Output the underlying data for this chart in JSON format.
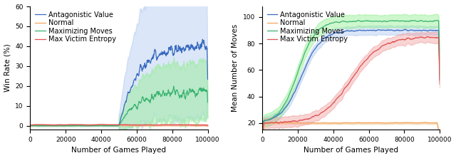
{
  "left": {
    "xlabel": "Number of Games Played",
    "ylabel": "Win Rate (%)",
    "xlim": [
      0,
      100000
    ],
    "ylim": [
      -2,
      60
    ],
    "yticks": [
      0,
      10,
      20,
      30,
      40,
      50,
      60
    ],
    "xticks": [
      0,
      20000,
      40000,
      60000,
      80000,
      100000
    ],
    "xtick_labels": [
      "0",
      "20000",
      "40000",
      "60000",
      "80000",
      "100000"
    ],
    "series": {
      "antagonistic": {
        "color": "#3a6bbf",
        "shade_color": "#b0c8f0",
        "label": "Antagonistic Value"
      },
      "normal": {
        "color": "#f4a460",
        "shade_color": "#f4d0a0",
        "label": "Normal"
      },
      "maximizing": {
        "color": "#3cb371",
        "shade_color": "#90ee90",
        "label": "Maximizing Moves"
      },
      "entropy": {
        "color": "#e05050",
        "shade_color": "#f0a0a0",
        "label": "Max Victim Entropy"
      }
    }
  },
  "right": {
    "xlabel": "Number of Games Played",
    "ylabel": "Mean Number of Moves",
    "xlim": [
      0,
      100000
    ],
    "ylim": [
      15,
      108
    ],
    "yticks": [
      20,
      40,
      60,
      80,
      100
    ],
    "xticks": [
      0,
      20000,
      40000,
      60000,
      80000,
      100000
    ],
    "xtick_labels": [
      "0",
      "20000",
      "40000",
      "60000",
      "80000",
      "100000"
    ],
    "series": {
      "antagonistic": {
        "color": "#3a6bbf",
        "shade_color": "#b0c8f0",
        "label": "Antagonistic Value"
      },
      "normal": {
        "color": "#f4a460",
        "shade_color": "#f4d0a0",
        "label": "Normal"
      },
      "maximizing": {
        "color": "#3cb371",
        "shade_color": "#90ee90",
        "label": "Maximizing Moves"
      },
      "entropy": {
        "color": "#e05050",
        "shade_color": "#f0a0a0",
        "label": "Max Victim Entropy"
      }
    }
  },
  "legend_fontsize": 7,
  "axis_fontsize": 7.5,
  "tick_fontsize": 6.5
}
